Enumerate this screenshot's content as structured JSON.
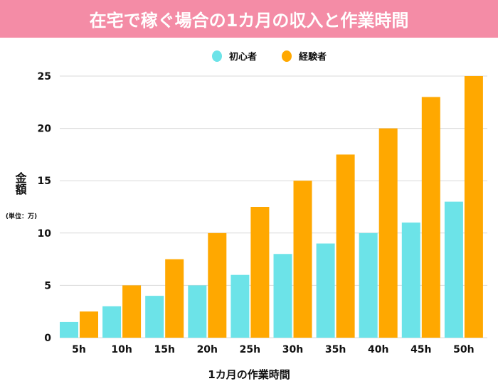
{
  "chart_data": {
    "type": "bar",
    "title": "在宅で稼ぐ場合の1カ月の収入と作業時間",
    "xlabel": "1カ月の作業時間",
    "ylabel": "金額",
    "ylabel_unit": "(単位：万)",
    "categories": [
      "5h",
      "10h",
      "15h",
      "20h",
      "25h",
      "30h",
      "35h",
      "40h",
      "45h",
      "50h"
    ],
    "series": [
      {
        "name": "初心者",
        "color": "#6ce3e8",
        "values": [
          1.5,
          3,
          4,
          5,
          6,
          8,
          9,
          10,
          11,
          13
        ]
      },
      {
        "name": "経験者",
        "color": "#ffa800",
        "values": [
          2.5,
          5,
          7.5,
          10,
          12.5,
          15,
          17.5,
          20,
          23,
          25
        ]
      }
    ],
    "ylim": [
      0,
      25
    ],
    "yticks": [
      0,
      5,
      10,
      15,
      20,
      25
    ],
    "grid": true,
    "legend": "top-center",
    "header_color": "#f48ca6"
  }
}
